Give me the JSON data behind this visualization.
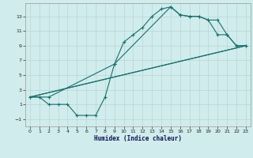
{
  "xlabel": "Humidex (Indice chaleur)",
  "bg_color": "#d0ecec",
  "grid_color": "#b8d4d4",
  "line_color": "#1a6e6e",
  "xlim": [
    -0.5,
    23.5
  ],
  "ylim": [
    -2.0,
    14.8
  ],
  "xticks": [
    0,
    1,
    2,
    3,
    4,
    5,
    6,
    7,
    8,
    9,
    10,
    11,
    12,
    13,
    14,
    15,
    16,
    17,
    18,
    19,
    20,
    21,
    22,
    23
  ],
  "yticks": [
    -1,
    1,
    3,
    5,
    7,
    9,
    11,
    13
  ],
  "curve1_x": [
    0,
    1,
    2,
    3,
    4,
    5,
    6,
    7,
    8,
    9,
    10,
    11,
    12,
    13,
    14,
    15,
    16,
    17,
    18,
    19,
    20,
    21,
    22,
    23
  ],
  "curve1_y": [
    2.0,
    2.0,
    1.0,
    1.0,
    1.0,
    -0.5,
    -0.5,
    -0.5,
    2.0,
    6.5,
    9.5,
    10.5,
    11.5,
    13.0,
    14.0,
    14.3,
    13.2,
    13.0,
    13.0,
    12.5,
    10.5,
    10.5,
    9.0,
    9.0
  ],
  "curve2_x": [
    0,
    2,
    9,
    15,
    16,
    17,
    18,
    19,
    20,
    21,
    22,
    23
  ],
  "curve2_y": [
    2.0,
    2.0,
    6.5,
    14.3,
    13.2,
    13.0,
    13.0,
    12.5,
    12.5,
    10.5,
    9.0,
    9.0
  ],
  "curve3_x": [
    0,
    23
  ],
  "curve3_y": [
    2.0,
    9.0
  ],
  "curve4_x": [
    0,
    23
  ],
  "curve4_y": [
    2.0,
    9.0
  ]
}
